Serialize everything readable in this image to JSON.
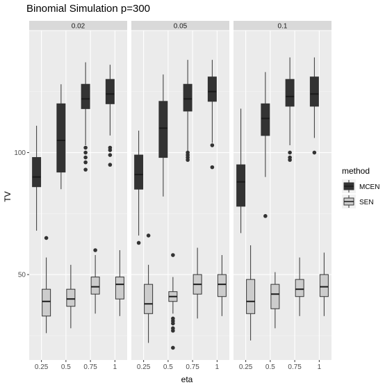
{
  "chart_data": {
    "type": "boxplot",
    "title": "Binomial Simulation p=300",
    "xlabel": "eta",
    "ylabel": "TV",
    "ylim": [
      15,
      150
    ],
    "yticks": [
      50,
      100
    ],
    "categories": [
      "0.25",
      "0.5",
      "0.75",
      "1"
    ],
    "legend": {
      "title": "method",
      "position": "right",
      "entries": [
        {
          "name": "MCEN",
          "color": "#333333"
        },
        {
          "name": "SEN",
          "color": "#cccccc"
        }
      ]
    },
    "grid": true,
    "panels": [
      {
        "label": "0.02",
        "series": [
          {
            "name": "MCEN",
            "boxes": [
              {
                "x": "0.25",
                "lw": 68,
                "q1": 86,
                "median": 90,
                "q3": 98,
                "uw": 111,
                "outliers": []
              },
              {
                "x": "0.5",
                "lw": 85,
                "q1": 92,
                "median": 105,
                "q3": 120,
                "uw": 128,
                "outliers": []
              },
              {
                "x": "0.75",
                "lw": 103,
                "q1": 118,
                "median": 122,
                "q3": 128,
                "uw": 137,
                "outliers": [
                  93,
                  96,
                  98,
                  100,
                  102
                ]
              },
              {
                "x": "1",
                "lw": 107,
                "q1": 120,
                "median": 124,
                "q3": 130,
                "uw": 136,
                "outliers": [
                  95,
                  99,
                  101,
                  102
                ]
              }
            ]
          },
          {
            "name": "SEN",
            "boxes": [
              {
                "x": "0.25",
                "lw": 26,
                "q1": 33,
                "median": 39,
                "q3": 44,
                "uw": 57,
                "outliers": [
                  65
                ]
              },
              {
                "x": "0.5",
                "lw": 28,
                "q1": 37,
                "median": 40,
                "q3": 44,
                "uw": 54,
                "outliers": []
              },
              {
                "x": "0.75",
                "lw": 34,
                "q1": 42,
                "median": 45,
                "q3": 49,
                "uw": 58,
                "outliers": [
                  60
                ]
              },
              {
                "x": "1",
                "lw": 33,
                "q1": 40,
                "median": 46,
                "q3": 49,
                "uw": 60,
                "outliers": []
              }
            ]
          }
        ]
      },
      {
        "label": "0.05",
        "series": [
          {
            "name": "MCEN",
            "boxes": [
              {
                "x": "0.25",
                "lw": 66,
                "q1": 85,
                "median": 91,
                "q3": 99,
                "uw": 109,
                "outliers": [
                  63
                ]
              },
              {
                "x": "0.5",
                "lw": 82,
                "q1": 98,
                "median": 110,
                "q3": 121,
                "uw": 132,
                "outliers": []
              },
              {
                "x": "0.75",
                "lw": 100,
                "q1": 117,
                "median": 122,
                "q3": 128,
                "uw": 138,
                "outliers": [
                  97,
                  98,
                  99,
                  100
                ]
              },
              {
                "x": "1",
                "lw": 104,
                "q1": 121,
                "median": 125,
                "q3": 131,
                "uw": 138,
                "outliers": [
                  94,
                  103
                ]
              }
            ]
          },
          {
            "name": "SEN",
            "boxes": [
              {
                "x": "0.25",
                "lw": 22,
                "q1": 34,
                "median": 38,
                "q3": 46,
                "uw": 54,
                "outliers": [
                  66
                ]
              },
              {
                "x": "0.5",
                "lw": 34,
                "q1": 39,
                "median": 41,
                "q3": 43,
                "uw": 49,
                "outliers": [
                  20,
                  27,
                  28,
                  30,
                  31,
                  32,
                  58
                ]
              },
              {
                "x": "0.75",
                "lw": 32,
                "q1": 42,
                "median": 46,
                "q3": 50,
                "uw": 61,
                "outliers": []
              },
              {
                "x": "1",
                "lw": 33,
                "q1": 41,
                "median": 46,
                "q3": 50,
                "uw": 58,
                "outliers": []
              }
            ]
          }
        ]
      },
      {
        "label": "0.1",
        "series": [
          {
            "name": "MCEN",
            "boxes": [
              {
                "x": "0.25",
                "lw": 67,
                "q1": 78,
                "median": 88,
                "q3": 95,
                "uw": 118,
                "outliers": []
              },
              {
                "x": "0.5",
                "lw": 90,
                "q1": 107,
                "median": 114,
                "q3": 120,
                "uw": 133,
                "outliers": [
                  74
                ]
              },
              {
                "x": "0.75",
                "lw": 103,
                "q1": 119,
                "median": 123,
                "q3": 130,
                "uw": 139,
                "outliers": [
                  97,
                  98,
                  100
                ]
              },
              {
                "x": "1",
                "lw": 106,
                "q1": 119,
                "median": 124,
                "q3": 131,
                "uw": 139,
                "outliers": [
                  100
                ]
              }
            ]
          },
          {
            "name": "SEN",
            "boxes": [
              {
                "x": "0.25",
                "lw": 23,
                "q1": 34,
                "median": 39,
                "q3": 48,
                "uw": 62,
                "outliers": []
              },
              {
                "x": "0.5",
                "lw": 28,
                "q1": 36,
                "median": 42,
                "q3": 46,
                "uw": 51,
                "outliers": []
              },
              {
                "x": "0.75",
                "lw": 33,
                "q1": 41,
                "median": 44,
                "q3": 48,
                "uw": 57,
                "outliers": []
              },
              {
                "x": "1",
                "lw": 33,
                "q1": 41,
                "median": 45,
                "q3": 50,
                "uw": 59,
                "outliers": []
              }
            ]
          }
        ]
      }
    ]
  }
}
